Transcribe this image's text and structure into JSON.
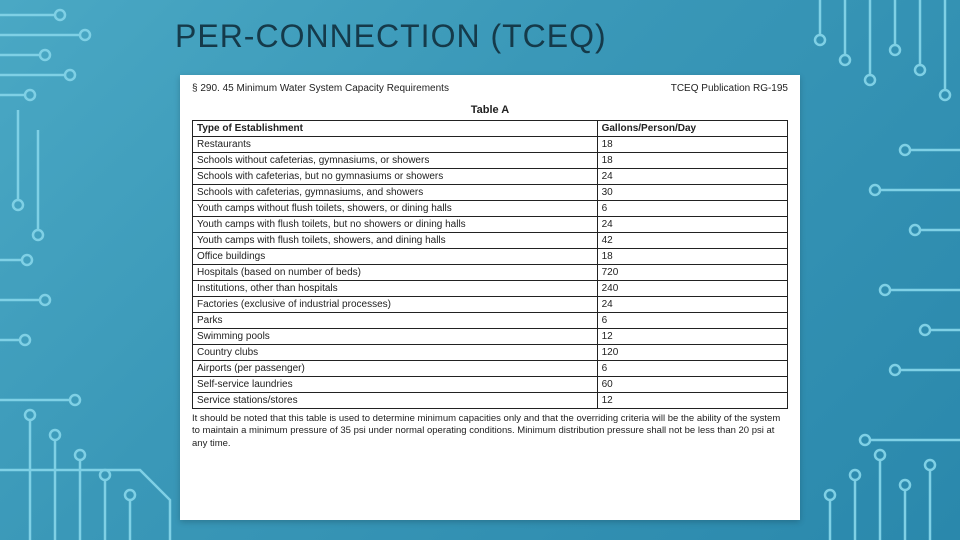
{
  "slide": {
    "title": "PER-CONNECTION (TCEQ)",
    "bg_gradient": [
      "#4aa8c4",
      "#2a88ac"
    ],
    "circuit_color": "#7fd0e5",
    "card": {
      "header_left": "§ 290. 45 Minimum Water System Capacity Requirements",
      "header_right": "TCEQ Publication RG-195",
      "table_caption": "Table A",
      "col_header_left": "Type of Establishment",
      "col_header_right": "Gallons/Person/Day",
      "rows": [
        {
          "est": "Restaurants",
          "gpd": "18"
        },
        {
          "est": "Schools without cafeterias, gymnasiums, or showers",
          "gpd": "18"
        },
        {
          "est": "Schools with cafeterias, but no gymnasiums or showers",
          "gpd": "24"
        },
        {
          "est": "Schools with cafeterias, gymnasiums, and showers",
          "gpd": "30"
        },
        {
          "est": "Youth camps without flush toilets, showers, or dining halls",
          "gpd": "6"
        },
        {
          "est": "Youth camps with flush toilets, but no showers or dining halls",
          "gpd": "24"
        },
        {
          "est": "Youth camps with flush toilets, showers, and dining halls",
          "gpd": "42"
        },
        {
          "est": "Office buildings",
          "gpd": "18"
        },
        {
          "est": "Hospitals (based on number of beds)",
          "gpd": "720"
        },
        {
          "est": "Institutions, other than hospitals",
          "gpd": "240"
        },
        {
          "est": "Factories (exclusive of industrial processes)",
          "gpd": "24"
        },
        {
          "est": "Parks",
          "gpd": "6"
        },
        {
          "est": "Swimming pools",
          "gpd": "12"
        },
        {
          "est": "Country clubs",
          "gpd": "120"
        },
        {
          "est": "Airports (per passenger)",
          "gpd": "6"
        },
        {
          "est": "Self-service laundries",
          "gpd": "60"
        },
        {
          "est": "Service stations/stores",
          "gpd": "12"
        }
      ],
      "note": "It should be noted that this table is used to determine minimum capacities only and that the overriding criteria will be the ability of the system to maintain a minimum pressure of 35 psi under normal operating conditions. Minimum distribution pressure shall not be less than 20 psi at any time."
    }
  }
}
